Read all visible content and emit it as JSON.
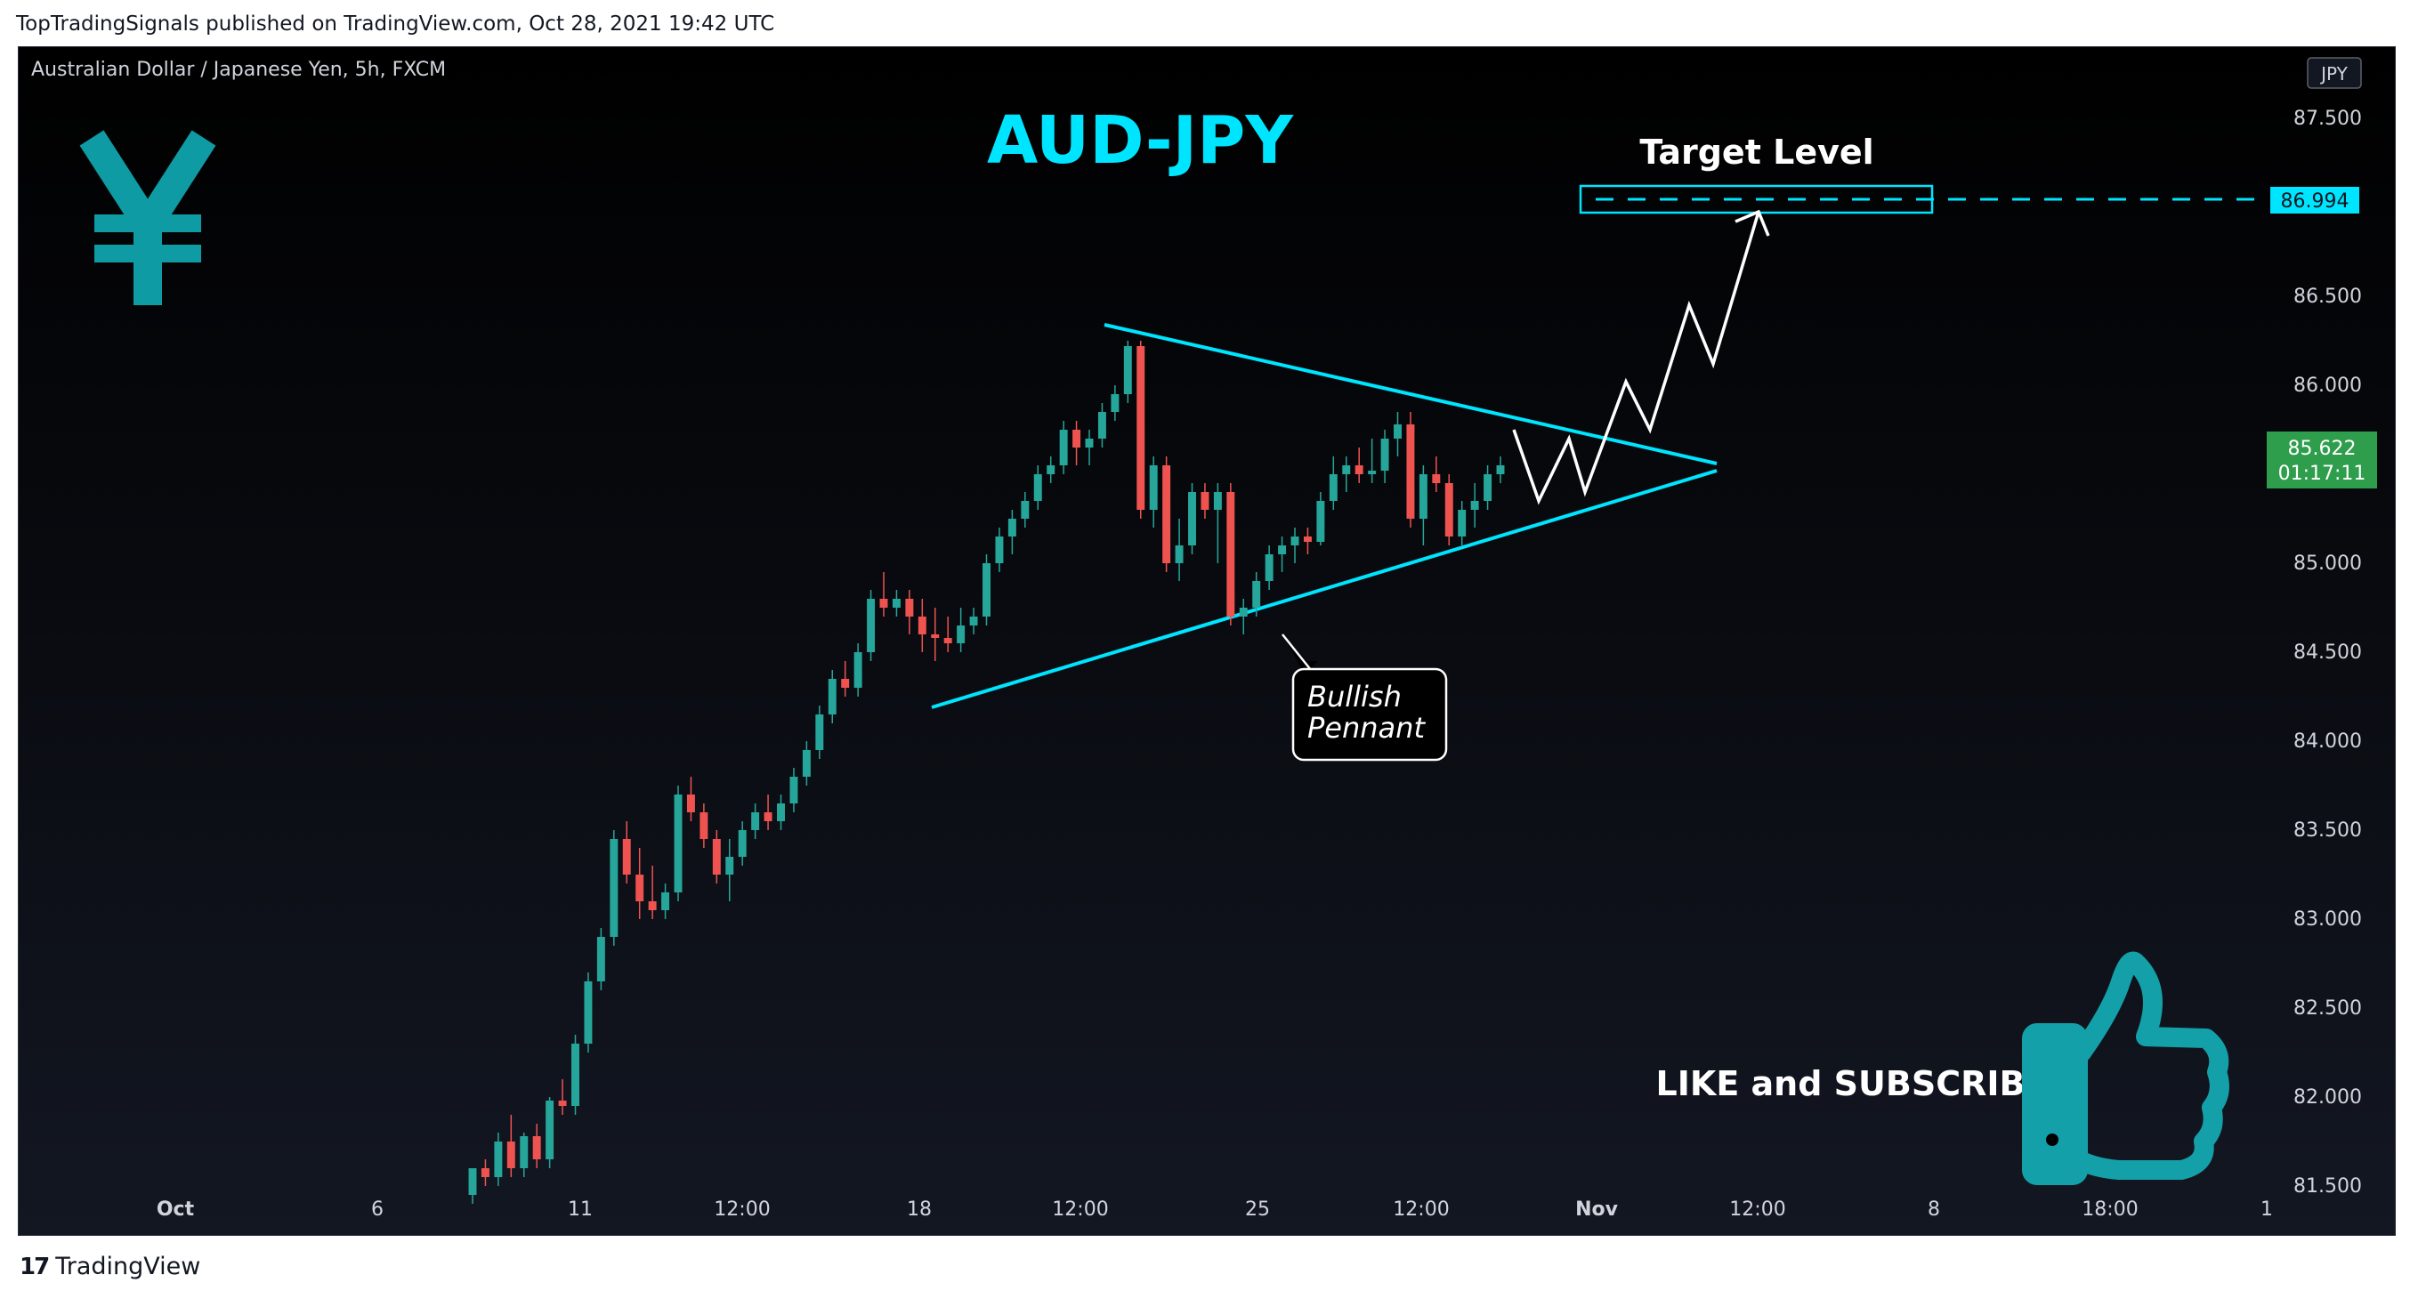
{
  "publisher_line": "TopTradingSignals published on TradingView.com, Oct 28, 2021 19:42 UTC",
  "footer": {
    "logo_mark": "17",
    "brand": "TradingView"
  },
  "colors": {
    "background": "#131722",
    "candle_up": "#26a69a",
    "candle_down": "#ef5350",
    "trendline": "#00e5ff",
    "target": "#00e5ff",
    "price_badge": "#2e9e4c",
    "yen_icon": "#0e9ba3",
    "thumb_icon": "#14a0a8"
  },
  "chart_data": {
    "type": "candlestick",
    "symbol": "Australian Dollar / Japanese Yen, 5h, FXCM",
    "currency": "JPY",
    "title": "AUD-JPY",
    "annotations": {
      "target_label": "Target Level",
      "pattern_label_line1": "Bullish",
      "pattern_label_line2": "Pennant",
      "call_to_action": "LIKE and SUBSCRIBE"
    },
    "target_price": "86.994",
    "last_price": "85.622",
    "countdown": "01:17:11",
    "y_ticks": [
      "87.500",
      "86.500",
      "86.000",
      "85.000",
      "84.500",
      "84.000",
      "83.500",
      "83.000",
      "82.500",
      "82.000",
      "81.500"
    ],
    "x_ticks": [
      "Oct",
      "6",
      "11",
      "12:00",
      "18",
      "12:00",
      "25",
      "12:00",
      "Nov",
      "12:00",
      "8",
      "18:00",
      "1"
    ],
    "ylim": [
      81.3,
      87.8
    ],
    "ohlc": [
      [
        81.45,
        81.6,
        81.4,
        81.6
      ],
      [
        81.6,
        81.65,
        81.5,
        81.55
      ],
      [
        81.55,
        81.8,
        81.5,
        81.75
      ],
      [
        81.75,
        81.9,
        81.55,
        81.6
      ],
      [
        81.6,
        81.8,
        81.55,
        81.78
      ],
      [
        81.78,
        81.85,
        81.6,
        81.65
      ],
      [
        81.65,
        82.0,
        81.6,
        81.98
      ],
      [
        81.98,
        82.1,
        81.9,
        81.95
      ],
      [
        81.95,
        82.35,
        81.9,
        82.3
      ],
      [
        82.3,
        82.7,
        82.25,
        82.65
      ],
      [
        82.65,
        82.95,
        82.6,
        82.9
      ],
      [
        82.9,
        83.5,
        82.85,
        83.45
      ],
      [
        83.45,
        83.55,
        83.2,
        83.25
      ],
      [
        83.25,
        83.4,
        83.0,
        83.1
      ],
      [
        83.1,
        83.3,
        83.0,
        83.05
      ],
      [
        83.05,
        83.2,
        83.0,
        83.15
      ],
      [
        83.15,
        83.75,
        83.1,
        83.7
      ],
      [
        83.7,
        83.8,
        83.55,
        83.6
      ],
      [
        83.6,
        83.65,
        83.4,
        83.45
      ],
      [
        83.45,
        83.5,
        83.2,
        83.25
      ],
      [
        83.25,
        83.45,
        83.1,
        83.35
      ],
      [
        83.35,
        83.55,
        83.3,
        83.5
      ],
      [
        83.5,
        83.65,
        83.45,
        83.6
      ],
      [
        83.6,
        83.7,
        83.5,
        83.55
      ],
      [
        83.55,
        83.7,
        83.5,
        83.65
      ],
      [
        83.65,
        83.85,
        83.6,
        83.8
      ],
      [
        83.8,
        84.0,
        83.75,
        83.95
      ],
      [
        83.95,
        84.2,
        83.9,
        84.15
      ],
      [
        84.15,
        84.4,
        84.1,
        84.35
      ],
      [
        84.35,
        84.45,
        84.25,
        84.3
      ],
      [
        84.3,
        84.55,
        84.25,
        84.5
      ],
      [
        84.5,
        84.85,
        84.45,
        84.8
      ],
      [
        84.8,
        84.95,
        84.7,
        84.75
      ],
      [
        84.75,
        84.85,
        84.7,
        84.8
      ],
      [
        84.8,
        84.85,
        84.6,
        84.7
      ],
      [
        84.7,
        84.8,
        84.5,
        84.6
      ],
      [
        84.6,
        84.75,
        84.45,
        84.58
      ],
      [
        84.58,
        84.7,
        84.5,
        84.55
      ],
      [
        84.55,
        84.75,
        84.5,
        84.65
      ],
      [
        84.65,
        84.75,
        84.6,
        84.7
      ],
      [
        84.7,
        85.05,
        84.65,
        85.0
      ],
      [
        85.0,
        85.2,
        84.95,
        85.15
      ],
      [
        85.15,
        85.3,
        85.05,
        85.25
      ],
      [
        85.25,
        85.4,
        85.2,
        85.35
      ],
      [
        85.35,
        85.55,
        85.3,
        85.5
      ],
      [
        85.5,
        85.6,
        85.45,
        85.55
      ],
      [
        85.55,
        85.8,
        85.5,
        85.75
      ],
      [
        85.75,
        85.8,
        85.55,
        85.65
      ],
      [
        85.65,
        85.75,
        85.55,
        85.7
      ],
      [
        85.7,
        85.9,
        85.65,
        85.85
      ],
      [
        85.85,
        86.0,
        85.8,
        85.95
      ],
      [
        85.95,
        86.25,
        85.9,
        86.22
      ],
      [
        86.22,
        86.25,
        85.25,
        85.3
      ],
      [
        85.3,
        85.6,
        85.2,
        85.55
      ],
      [
        85.55,
        85.6,
        84.95,
        85.0
      ],
      [
        85.0,
        85.25,
        84.9,
        85.1
      ],
      [
        85.1,
        85.45,
        85.05,
        85.4
      ],
      [
        85.4,
        85.45,
        85.25,
        85.3
      ],
      [
        85.3,
        85.45,
        85.0,
        85.4
      ],
      [
        85.4,
        85.45,
        84.65,
        84.7
      ],
      [
        84.7,
        84.8,
        84.6,
        84.75
      ],
      [
        84.75,
        84.95,
        84.7,
        84.9
      ],
      [
        84.9,
        85.1,
        84.85,
        85.05
      ],
      [
        85.05,
        85.15,
        84.95,
        85.1
      ],
      [
        85.1,
        85.2,
        85.0,
        85.15
      ],
      [
        85.15,
        85.2,
        85.05,
        85.12
      ],
      [
        85.12,
        85.4,
        85.1,
        85.35
      ],
      [
        85.35,
        85.6,
        85.3,
        85.5
      ],
      [
        85.5,
        85.6,
        85.4,
        85.55
      ],
      [
        85.55,
        85.65,
        85.45,
        85.5
      ],
      [
        85.5,
        85.7,
        85.45,
        85.52
      ],
      [
        85.52,
        85.75,
        85.45,
        85.7
      ],
      [
        85.7,
        85.85,
        85.6,
        85.78
      ],
      [
        85.78,
        85.85,
        85.2,
        85.25
      ],
      [
        85.25,
        85.55,
        85.1,
        85.5
      ],
      [
        85.5,
        85.6,
        85.4,
        85.45
      ],
      [
        85.45,
        85.5,
        85.1,
        85.15
      ],
      [
        85.15,
        85.35,
        85.1,
        85.3
      ],
      [
        85.3,
        85.45,
        85.2,
        85.35
      ],
      [
        85.35,
        85.55,
        85.3,
        85.5
      ],
      [
        85.5,
        85.6,
        85.45,
        85.55
      ]
    ]
  }
}
